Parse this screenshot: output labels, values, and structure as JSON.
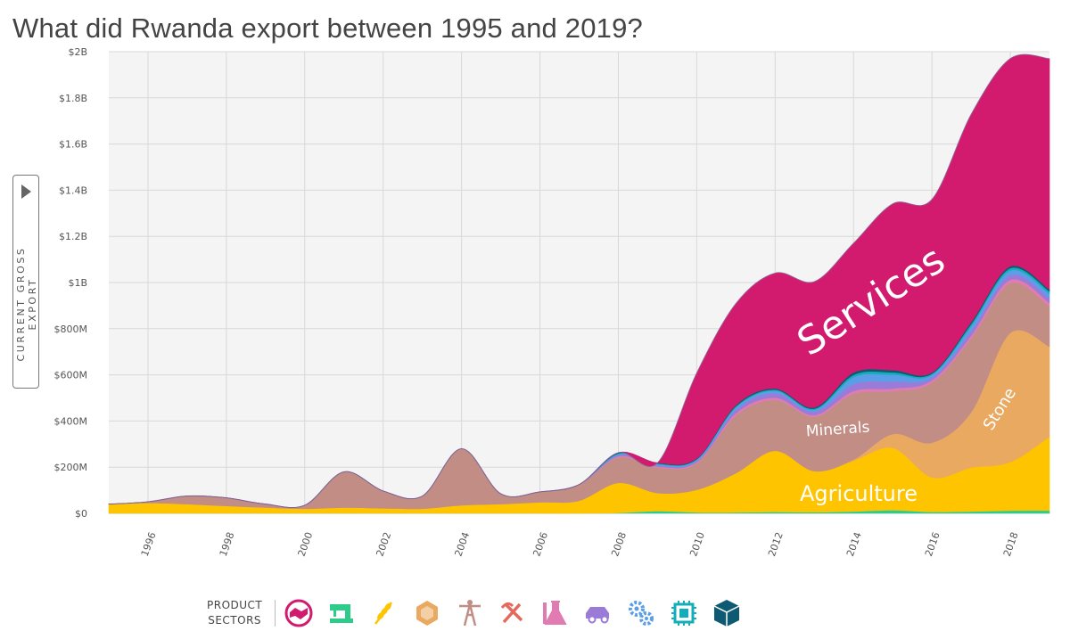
{
  "title": "What did Rwanda export between 1995 and 2019?",
  "y_axis_label": "CURRENT GROSS EXPORT",
  "chart_data": {
    "type": "area",
    "stacked": true,
    "x": [
      1995,
      1996,
      1997,
      1998,
      1999,
      2000,
      2001,
      2002,
      2003,
      2004,
      2005,
      2006,
      2007,
      2008,
      2009,
      2010,
      2011,
      2012,
      2013,
      2014,
      2015,
      2016,
      2017,
      2018,
      2019
    ],
    "xlim": [
      1995,
      2019
    ],
    "ylim": [
      0,
      2000
    ],
    "y_unit": "millions USD",
    "x_ticks": [
      "1996",
      "1998",
      "2000",
      "2002",
      "2004",
      "2006",
      "2008",
      "2010",
      "2012",
      "2014",
      "2016",
      "2018"
    ],
    "y_ticks": [
      {
        "value": 0,
        "label": "$0"
      },
      {
        "value": 200,
        "label": "$200M"
      },
      {
        "value": 400,
        "label": "$400M"
      },
      {
        "value": 600,
        "label": "$600M"
      },
      {
        "value": 800,
        "label": "$800M"
      },
      {
        "value": 1000,
        "label": "$1B"
      },
      {
        "value": 1200,
        "label": "$1.2B"
      },
      {
        "value": 1400,
        "label": "$1.4B"
      },
      {
        "value": 1600,
        "label": "$1.6B"
      },
      {
        "value": 1800,
        "label": "$1.8B"
      },
      {
        "value": 2000,
        "label": "$2B"
      }
    ],
    "series": [
      {
        "name": "Textiles",
        "color": "#2ecc8a",
        "values": [
          0,
          0,
          0,
          0,
          0,
          0,
          0,
          0,
          0,
          0,
          0,
          0,
          0,
          2,
          10,
          4,
          4,
          6,
          5,
          8,
          14,
          6,
          8,
          12,
          12
        ]
      },
      {
        "name": "Agriculture",
        "color": "#ffc400",
        "values": [
          40,
          45,
          40,
          32,
          25,
          20,
          25,
          22,
          20,
          35,
          40,
          48,
          55,
          130,
          78,
          98,
          170,
          265,
          178,
          220,
          270,
          150,
          190,
          210,
          320
        ]
      },
      {
        "name": "Stone",
        "color": "#e9a960",
        "values": [
          0,
          0,
          0,
          0,
          0,
          0,
          0,
          0,
          0,
          0,
          0,
          0,
          0,
          0,
          0,
          0,
          0,
          0,
          0,
          5,
          60,
          150,
          240,
          560,
          390
        ]
      },
      {
        "name": "Minerals",
        "color": "#c28d84",
        "values": [
          0,
          5,
          35,
          35,
          15,
          15,
          155,
          75,
          55,
          245,
          45,
          45,
          70,
          110,
          110,
          115,
          250,
          220,
          235,
          285,
          185,
          260,
          320,
          215,
          175
        ]
      },
      {
        "name": "Chemicals",
        "color": "#e07cb2",
        "values": [
          0,
          0,
          0,
          0,
          0,
          0,
          0,
          0,
          0,
          0,
          0,
          0,
          0,
          5,
          5,
          5,
          10,
          10,
          8,
          12,
          12,
          10,
          12,
          15,
          15
        ]
      },
      {
        "name": "Vehicles",
        "color": "#9b7bd8",
        "values": [
          0,
          0,
          0,
          0,
          0,
          0,
          0,
          0,
          0,
          0,
          0,
          0,
          0,
          5,
          5,
          5,
          15,
          20,
          15,
          30,
          30,
          12,
          20,
          20,
          20
        ]
      },
      {
        "name": "Machinery",
        "color": "#5b9ee8",
        "values": [
          0,
          0,
          0,
          0,
          0,
          0,
          0,
          0,
          0,
          0,
          0,
          0,
          0,
          5,
          5,
          5,
          10,
          10,
          8,
          30,
          30,
          12,
          20,
          20,
          20
        ]
      },
      {
        "name": "Electronics",
        "color": "#14aeb8",
        "values": [
          0,
          0,
          0,
          0,
          0,
          0,
          0,
          0,
          0,
          0,
          0,
          0,
          0,
          3,
          3,
          3,
          5,
          5,
          5,
          10,
          10,
          5,
          10,
          10,
          10
        ]
      },
      {
        "name": "Other",
        "color": "#0e5a72",
        "values": [
          0,
          0,
          0,
          0,
          0,
          0,
          0,
          0,
          0,
          0,
          0,
          0,
          0,
          3,
          3,
          3,
          5,
          5,
          5,
          10,
          10,
          5,
          8,
          8,
          8
        ]
      },
      {
        "name": "Services",
        "color": "#d21a6e",
        "values": [
          0,
          0,
          0,
          0,
          0,
          0,
          0,
          0,
          0,
          0,
          0,
          0,
          0,
          0,
          0,
          370,
          440,
          500,
          545,
          560,
          720,
          750,
          900,
          900,
          1000
        ]
      }
    ],
    "labels": {
      "services": "Services",
      "minerals": "Minerals",
      "stone": "Stone",
      "agriculture": "Agriculture"
    }
  },
  "sector_legend": {
    "label_line1": "PRODUCT",
    "label_line2": "SECTORS",
    "icons": [
      {
        "name": "services-icon",
        "color": "#d21a6e"
      },
      {
        "name": "textiles-icon",
        "color": "#2ecc8a"
      },
      {
        "name": "agriculture-icon",
        "color": "#ffc400"
      },
      {
        "name": "stone-icon",
        "color": "#e9a960"
      },
      {
        "name": "minerals-icon",
        "color": "#c28d84"
      },
      {
        "name": "metals-icon",
        "color": "#e36a5c"
      },
      {
        "name": "chemicals-icon",
        "color": "#e07cb2"
      },
      {
        "name": "vehicles-icon",
        "color": "#9b7bd8"
      },
      {
        "name": "machinery-icon",
        "color": "#5b9ee8"
      },
      {
        "name": "electronics-icon",
        "color": "#14aeb8"
      },
      {
        "name": "other-icon",
        "color": "#0e5a72"
      }
    ]
  }
}
